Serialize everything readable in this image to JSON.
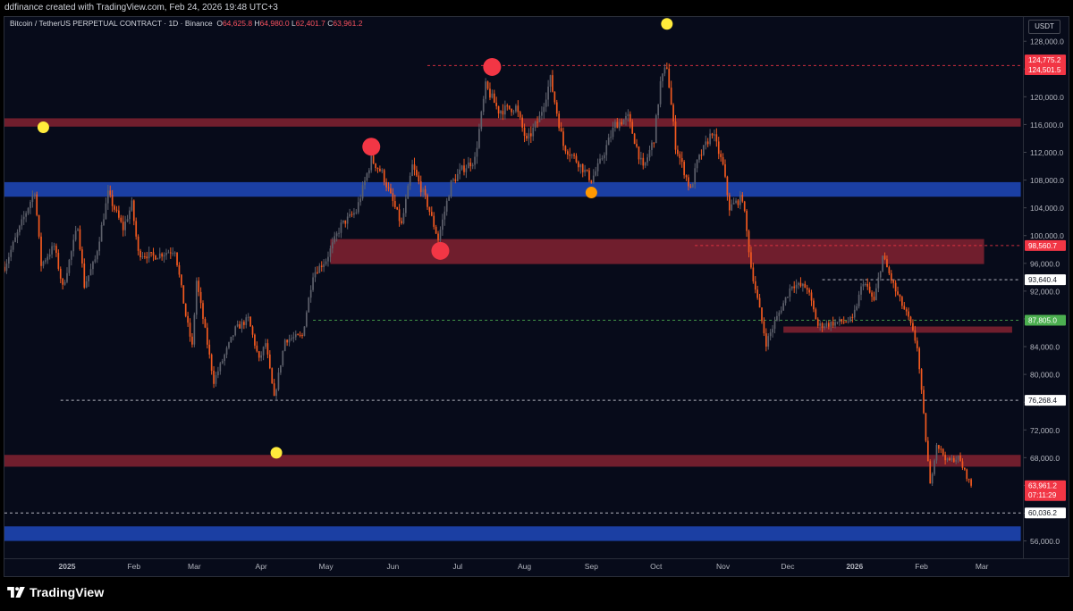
{
  "header": {
    "credit": "ddfinance created with TradingView.com, Feb 24, 2026 19:48 UTC+3"
  },
  "legend": {
    "symbol": "Bitcoin / TetherUS PERPETUAL CONTRACT · 1D · Binance",
    "o_label": "O",
    "o_value": "64,625.8",
    "h_label": "H",
    "h_value": "64,980.0",
    "l_label": "L",
    "l_value": "62,401.7",
    "c_label": "C",
    "c_value": "63,961.2"
  },
  "currency_button": "USDT",
  "brand": "TradingView",
  "colors": {
    "background": "#070b1a",
    "bull": "#5d606b",
    "bear": "#f2591f",
    "resistance": "#f23645",
    "support": "#2962ff",
    "marker_yellow": "#ffeb3b",
    "marker_red": "#f23645",
    "marker_orange": "#ff9800"
  },
  "chart_data": {
    "type": "candlestick",
    "interval": "1D",
    "x_range": [
      "2024-12-03",
      "2026-03-20"
    ],
    "ylim": [
      53500,
      131500
    ],
    "y_ticks": [
      56000,
      60000,
      64000,
      68000,
      72000,
      76000,
      80000,
      84000,
      88000,
      92000,
      96000,
      100000,
      104000,
      108000,
      112000,
      116000,
      120000,
      124000,
      128000
    ],
    "y_tick_labels": [
      "56,000.0",
      "60,000.0",
      "64,000.0",
      "68,000.0",
      "72,000.0",
      "76,000.0",
      "80,000.0",
      "84,000.0",
      "88,000.0",
      "92,000.0",
      "96,000.0",
      "100,000.0",
      "104,000.0",
      "108,000.0",
      "112,000.0",
      "116,000.0",
      "120,000.0",
      "124,000.0",
      "128,000.0"
    ],
    "x_ticks": [
      {
        "date": "2025-01-01",
        "label": "2025",
        "bold": true
      },
      {
        "date": "2025-02-01",
        "label": "Feb"
      },
      {
        "date": "2025-03-01",
        "label": "Mar"
      },
      {
        "date": "2025-04-01",
        "label": "Apr"
      },
      {
        "date": "2025-05-01",
        "label": "May"
      },
      {
        "date": "2025-06-01",
        "label": "Jun"
      },
      {
        "date": "2025-07-01",
        "label": "Jul"
      },
      {
        "date": "2025-08-01",
        "label": "Aug"
      },
      {
        "date": "2025-09-01",
        "label": "Sep"
      },
      {
        "date": "2025-10-01",
        "label": "Oct"
      },
      {
        "date": "2025-11-01",
        "label": "Nov"
      },
      {
        "date": "2025-12-01",
        "label": "Dec"
      },
      {
        "date": "2026-01-01",
        "label": "2026",
        "bold": true
      },
      {
        "date": "2026-02-01",
        "label": "Feb"
      },
      {
        "date": "2026-03-01",
        "label": "Mar"
      }
    ],
    "price_path": [
      [
        "2024-12-03",
        95500
      ],
      [
        "2024-12-08",
        99500
      ],
      [
        "2024-12-17",
        106500
      ],
      [
        "2024-12-20",
        95800
      ],
      [
        "2024-12-26",
        98500
      ],
      [
        "2024-12-30",
        92500
      ],
      [
        "2025-01-06",
        101500
      ],
      [
        "2025-01-09",
        92800
      ],
      [
        "2025-01-14",
        96500
      ],
      [
        "2025-01-20",
        106000
      ],
      [
        "2025-01-27",
        101000
      ],
      [
        "2025-01-31",
        104500
      ],
      [
        "2025-02-03",
        97500
      ],
      [
        "2025-02-10",
        97000
      ],
      [
        "2025-02-20",
        98000
      ],
      [
        "2025-02-25",
        88500
      ],
      [
        "2025-02-28",
        84000
      ],
      [
        "2025-03-02",
        93500
      ],
      [
        "2025-03-10",
        79000
      ],
      [
        "2025-03-20",
        86500
      ],
      [
        "2025-03-26",
        88000
      ],
      [
        "2025-03-31",
        82000
      ],
      [
        "2025-04-03",
        84500
      ],
      [
        "2025-04-07",
        76500
      ],
      [
        "2025-04-12",
        85000
      ],
      [
        "2025-04-20",
        85500
      ],
      [
        "2025-04-25",
        94500
      ],
      [
        "2025-05-01",
        96500
      ],
      [
        "2025-05-08",
        101500
      ],
      [
        "2025-05-15",
        103500
      ],
      [
        "2025-05-22",
        111000
      ],
      [
        "2025-05-27",
        109000
      ],
      [
        "2025-06-05",
        101500
      ],
      [
        "2025-06-10",
        110000
      ],
      [
        "2025-06-17",
        104500
      ],
      [
        "2025-06-22",
        99500
      ],
      [
        "2025-06-28",
        107500
      ],
      [
        "2025-07-03",
        109500
      ],
      [
        "2025-07-09",
        111000
      ],
      [
        "2025-07-14",
        121500
      ],
      [
        "2025-07-20",
        118000
      ],
      [
        "2025-07-28",
        118500
      ],
      [
        "2025-08-02",
        113500
      ],
      [
        "2025-08-08",
        117000
      ],
      [
        "2025-08-13",
        122500
      ],
      [
        "2025-08-19",
        113000
      ],
      [
        "2025-08-26",
        110500
      ],
      [
        "2025-09-01",
        108000
      ],
      [
        "2025-09-05",
        110500
      ],
      [
        "2025-09-12",
        116000
      ],
      [
        "2025-09-18",
        117000
      ],
      [
        "2025-09-25",
        109500
      ],
      [
        "2025-09-30",
        114000
      ],
      [
        "2025-10-03",
        122000
      ],
      [
        "2025-10-06",
        124500
      ],
      [
        "2025-10-10",
        113000
      ],
      [
        "2025-10-17",
        106500
      ],
      [
        "2025-10-20",
        110500
      ],
      [
        "2025-10-27",
        115000
      ],
      [
        "2025-11-01",
        110000
      ],
      [
        "2025-11-04",
        104000
      ],
      [
        "2025-11-10",
        105500
      ],
      [
        "2025-11-14",
        95500
      ],
      [
        "2025-11-21",
        84500
      ],
      [
        "2025-11-25",
        87500
      ],
      [
        "2025-12-03",
        93000
      ],
      [
        "2025-12-10",
        92500
      ],
      [
        "2025-12-15",
        87000
      ],
      [
        "2025-12-24",
        87500
      ],
      [
        "2025-12-31",
        87800
      ],
      [
        "2026-01-05",
        93500
      ],
      [
        "2026-01-10",
        90500
      ],
      [
        "2026-01-14",
        97000
      ],
      [
        "2026-01-20",
        92000
      ],
      [
        "2026-01-26",
        88000
      ],
      [
        "2026-01-30",
        84000
      ],
      [
        "2026-02-05",
        64000
      ],
      [
        "2026-02-08",
        70000
      ],
      [
        "2026-02-13",
        67500
      ],
      [
        "2026-02-18",
        68000
      ],
      [
        "2026-02-24",
        63961
      ]
    ],
    "zones": [
      {
        "name": "",
        "kind": "resistance",
        "from": "2024-12-03",
        "to": "2026-03-19",
        "low": 115700,
        "high": 116900
      },
      {
        "name": "",
        "kind": "support",
        "from": "2024-12-03",
        "to": "2026-03-19",
        "low": 105600,
        "high": 107700
      },
      {
        "name": "",
        "kind": "resistance",
        "from": "2025-05-03",
        "to": "2026-03-02",
        "low": 95900,
        "high": 99500
      },
      {
        "name": "",
        "kind": "resistance",
        "from": "2025-11-29",
        "to": "2026-03-15",
        "low": 86000,
        "high": 86900
      },
      {
        "name": "",
        "kind": "resistance",
        "from": "2024-12-03",
        "to": "2026-03-19",
        "low": 66700,
        "high": 68400
      },
      {
        "name": "",
        "kind": "support",
        "from": "2024-12-03",
        "to": "2026-03-19",
        "low": 56000,
        "high": 58100
      }
    ],
    "levels": [
      {
        "price": 124501.5,
        "from": "2025-06-17",
        "to": "2026-03-19",
        "style": "dashed",
        "color": "#f23645"
      },
      {
        "price": 98560.7,
        "from": "2025-10-19",
        "to": "2026-03-19",
        "style": "dashed",
        "color": "#f23645"
      },
      {
        "price": 93640.4,
        "from": "2025-12-17",
        "to": "2026-03-19",
        "style": "dashed",
        "color": "#d1d4dc"
      },
      {
        "price": 87805.0,
        "from": "2025-04-25",
        "to": "2026-03-19",
        "style": "dashed",
        "color": "#4caf50"
      },
      {
        "price": 76268.4,
        "from": "2024-12-29",
        "to": "2026-03-19",
        "style": "dashed",
        "color": "#d1d4dc"
      },
      {
        "price": 60036.2,
        "from": "2024-12-03",
        "to": "2026-03-19",
        "style": "dashed",
        "color": "#d1d4dc"
      }
    ],
    "markers": [
      {
        "date": "2024-12-21",
        "price": 115600,
        "color": "#ffeb3b",
        "size": "small"
      },
      {
        "date": "2025-05-22",
        "price": 112800,
        "color": "#f23645",
        "size": "large"
      },
      {
        "date": "2025-06-23",
        "price": 97800,
        "color": "#f23645",
        "size": "large"
      },
      {
        "date": "2025-07-17",
        "price": 124300,
        "color": "#f23645",
        "size": "large"
      },
      {
        "date": "2025-09-01",
        "price": 106200,
        "color": "#ff9800",
        "size": "small"
      },
      {
        "date": "2025-10-06",
        "price": 130500,
        "color": "#ffeb3b",
        "size": "small"
      },
      {
        "date": "2025-04-08",
        "price": 68700,
        "color": "#ffeb3b",
        "size": "small"
      }
    ],
    "price_labels": [
      {
        "text": "124,775.2",
        "price": 125300,
        "bg": "#f23645",
        "fg": "#ffffff"
      },
      {
        "text": "124,501.5",
        "price": 123900,
        "bg": "#f23645",
        "fg": "#ffffff"
      },
      {
        "text": "98,560.7",
        "price": 98560.7,
        "bg": "#f23645",
        "fg": "#ffffff"
      },
      {
        "text": "93,640.4",
        "price": 93640.4,
        "bg": "#ffffff",
        "fg": "#131722"
      },
      {
        "text": "87,805.0",
        "price": 87805.0,
        "bg": "#4caf50",
        "fg": "#ffffff"
      },
      {
        "text": "76,268.4",
        "price": 76268.4,
        "bg": "#ffffff",
        "fg": "#131722"
      },
      {
        "text": "60,036.2",
        "price": 60036.2,
        "bg": "#ffffff",
        "fg": "#131722"
      }
    ],
    "last_price": {
      "text": "63,961.2",
      "countdown": "07:11:29",
      "price": 63961.2,
      "bg": "#f23645"
    }
  }
}
